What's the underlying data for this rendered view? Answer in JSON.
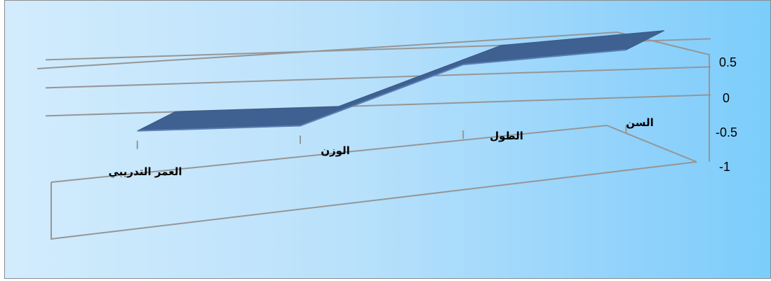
{
  "chart_data": {
    "type": "area",
    "style": "3d",
    "categories": [
      "العمر التدريبي",
      "الوزن",
      "الطول",
      "السن"
    ],
    "values": [
      -0.75,
      -0.75,
      0.25,
      0.42
    ],
    "ylim": [
      -1,
      0.5
    ],
    "yticks": [
      "0.5",
      "0",
      "-0.5",
      "-1"
    ],
    "grid": true,
    "legend": "none",
    "title": "",
    "xlabel": "",
    "ylabel": ""
  },
  "colors": {
    "series_fill": "#3e6192",
    "series_top": "#3a5a88",
    "gridline": "#969696",
    "background_left": "#d3ecfd",
    "background_right": "#7ccdfb"
  }
}
